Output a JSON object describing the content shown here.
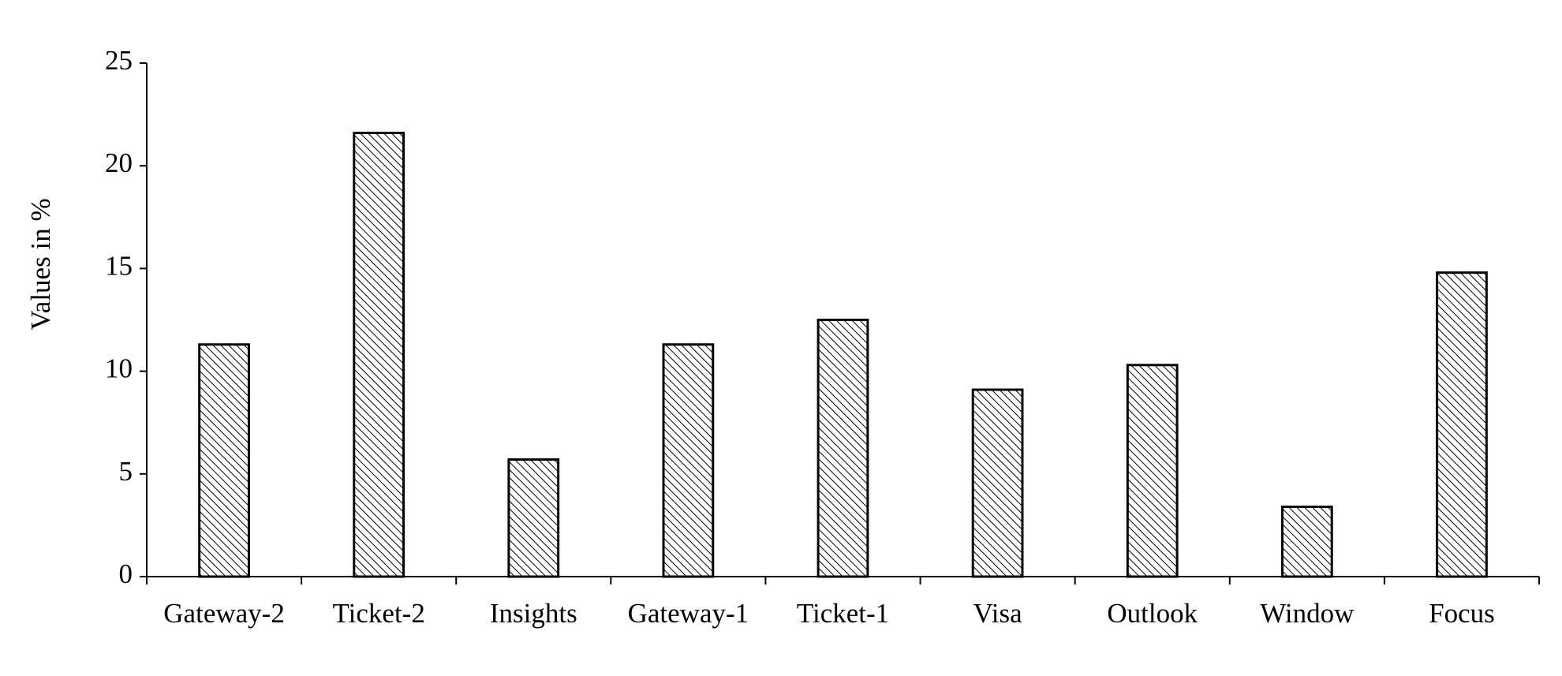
{
  "chart_data": {
    "type": "bar",
    "ylabel": "Values in %",
    "categories": [
      "Gateway-2",
      "Ticket-2",
      "Insights",
      "Gateway-1",
      "Ticket-1",
      "Visa",
      "Outlook",
      "Window",
      "Focus"
    ],
    "values": [
      11.3,
      21.6,
      5.7,
      11.3,
      12.5,
      9.1,
      10.3,
      3.4,
      14.8
    ],
    "color": "#000000",
    "ylim": [
      0,
      25
    ],
    "yticks": [
      0,
      5,
      10,
      15,
      20,
      25
    ],
    "grid": false
  }
}
